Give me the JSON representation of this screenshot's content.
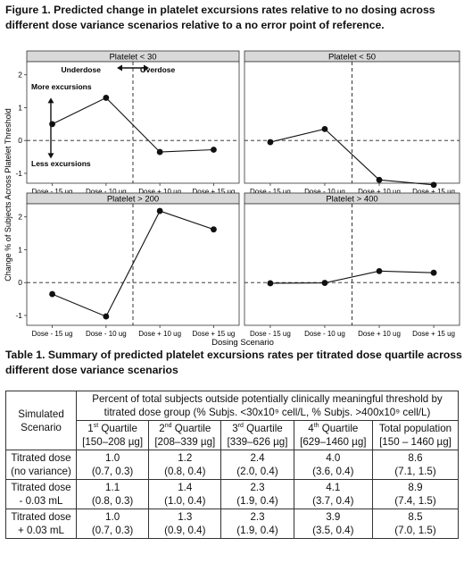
{
  "figure": {
    "caption": "Figure 1.  Predicted change in platelet excursions rates relative to no dosing across different dose variance scenarios relative to a no error point of reference."
  },
  "chart_data": {
    "type": "line",
    "categories": [
      "Dose - 15 ug",
      "Dose - 10 ug",
      "Dose + 10 ug",
      "Dose + 15 ug"
    ],
    "xlabel": "Dosing Scenario",
    "ylabel": "Change % of Subjects Across Platelet Threshold",
    "ylim": [
      -1.3,
      2.4
    ],
    "yticks": [
      -1,
      0,
      1,
      2
    ],
    "reference_line_y": 0,
    "reference_line_x_between": [
      "Dose - 10 ug",
      "Dose + 10 ug"
    ],
    "panels": [
      {
        "title": "Platelet < 30",
        "values": [
          0.5,
          1.3,
          -0.35,
          -0.28
        ]
      },
      {
        "title": "Platelet < 50",
        "values": [
          -0.05,
          0.35,
          -1.2,
          -1.35
        ]
      },
      {
        "title": "Platelet > 200",
        "values": [
          -0.35,
          -1.03,
          2.18,
          1.62
        ]
      },
      {
        "title": "Platelet > 400",
        "values": [
          -0.02,
          -0.01,
          0.35,
          0.3
        ]
      }
    ],
    "annotations": {
      "underdose": "Underdose",
      "overdose": "Overdose",
      "more": "More excursions",
      "less": "Less excursions"
    }
  },
  "table": {
    "caption": "Table 1.  Summary of predicted platelet excursions rates per titrated dose quartile across different dose variance scenarios",
    "row_header": "Simulated Scenario",
    "span_header": "Percent of total subjects outside potentially clinically meaningful threshold by titrated dose group (% Subjs. <30x10⁹ cell/L, % Subjs. >400x10⁹ cell/L)",
    "columns": [
      {
        "q": "1",
        "sup": "st",
        "name": " Quartile",
        "range": "[150–208 µg]"
      },
      {
        "q": "2",
        "sup": "nd",
        "name": " Quartile",
        "range": "[208–339 µg]"
      },
      {
        "q": "3",
        "sup": "rd",
        "name": " Quartile",
        "range": "[339–626 µg]"
      },
      {
        "q": "4",
        "sup": "th",
        "name": " Quartile",
        "range": "[629–1460 µg]"
      },
      {
        "q": "Total population",
        "sup": "",
        "name": "",
        "range": "[150 – 1460 µg]"
      }
    ],
    "rows": [
      {
        "label1": "Titrated dose",
        "label2": "(no variance)",
        "cells": [
          [
            "1.0",
            "(0.7, 0.3)"
          ],
          [
            "1.2",
            "(0.8, 0.4)"
          ],
          [
            "2.4",
            "(2.0, 0.4)"
          ],
          [
            "4.0",
            "(3.6, 0.4)"
          ],
          [
            "8.6",
            "(7.1, 1.5)"
          ]
        ]
      },
      {
        "label1": "Titrated dose",
        "label2": "- 0.03 mL",
        "cells": [
          [
            "1.1",
            "(0.8, 0.3)"
          ],
          [
            "1.4",
            "(1.0, 0.4)"
          ],
          [
            "2.3",
            "(1.9, 0.4)"
          ],
          [
            "4.1",
            "(3.7, 0.4)"
          ],
          [
            "8.9",
            "(7.4, 1.5)"
          ]
        ]
      },
      {
        "label1": "Titrated dose",
        "label2": "+ 0.03 mL",
        "cells": [
          [
            "1.0",
            "(0.7, 0.3)"
          ],
          [
            "1.3",
            "(0.9, 0.4)"
          ],
          [
            "2.3",
            "(1.9, 0.4)"
          ],
          [
            "3.9",
            "(3.5, 0.4)"
          ],
          [
            "8.5",
            "(7.0, 1.5)"
          ]
        ]
      }
    ]
  }
}
